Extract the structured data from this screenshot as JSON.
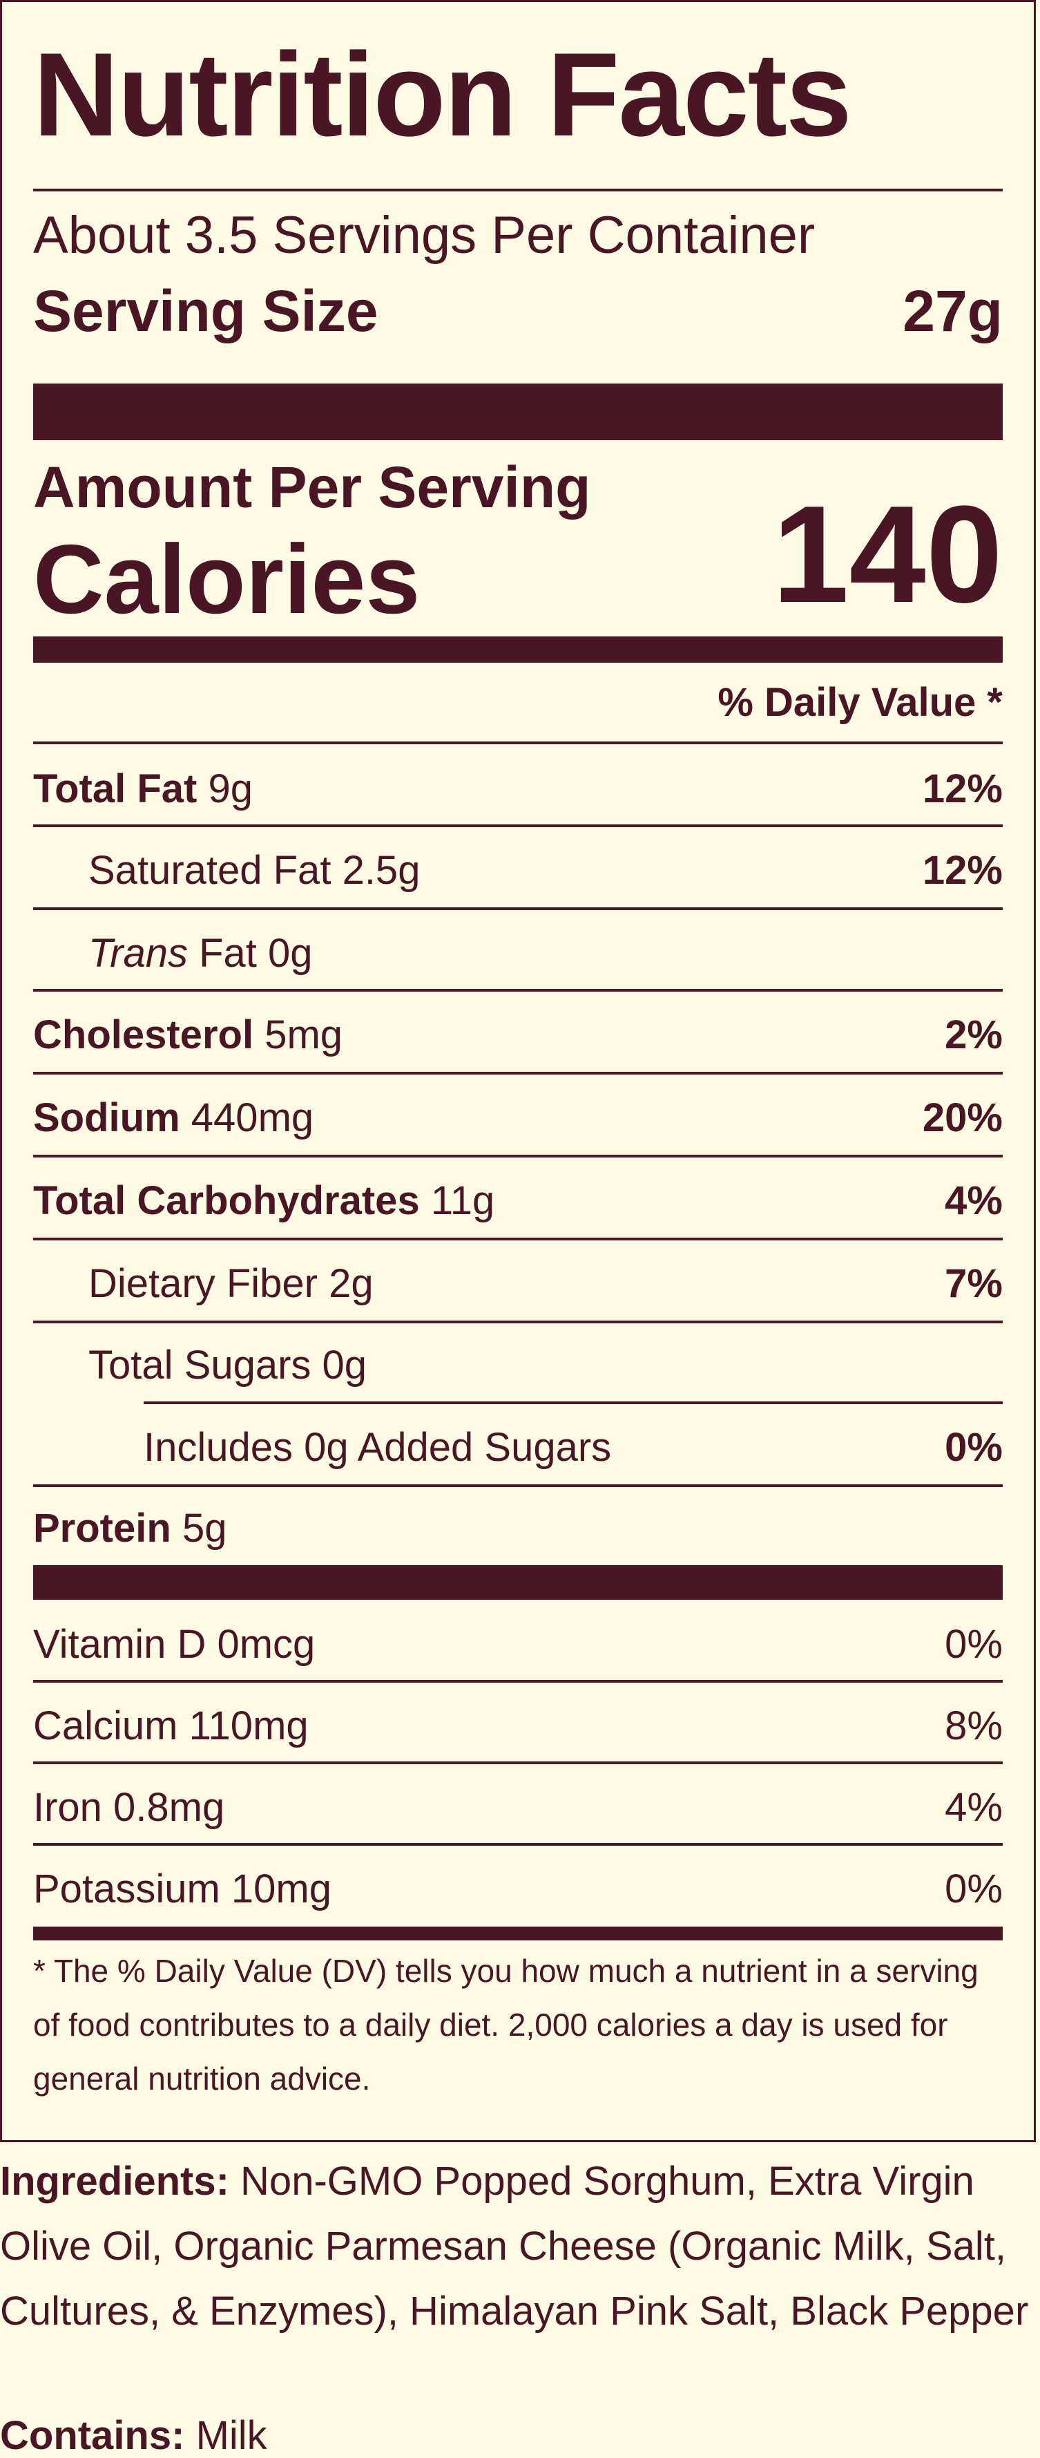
{
  "title": "Nutrition Facts",
  "servings_per_container": "About 3.5 Servings Per Container",
  "serving_size": {
    "label": "Serving Size",
    "value": "27g"
  },
  "amount_per_serving": "Amount Per Serving",
  "calories": {
    "label": "Calories",
    "value": "140"
  },
  "daily_value_header": "% Daily Value *",
  "nutrients": [
    {
      "name": "Total Fat",
      "amount": "9g",
      "dv": "12%"
    },
    {
      "name": "Saturated Fat",
      "amount": "2.5g",
      "dv": "12%"
    },
    {
      "name_italic": "Trans",
      "name": "Fat",
      "amount": "0g"
    },
    {
      "name": "Cholesterol",
      "amount": "5mg",
      "dv": "2%"
    },
    {
      "name": "Sodium",
      "amount": "440mg",
      "dv": "20%"
    },
    {
      "name": "Total Carbohydrates",
      "amount": "11g",
      "dv": "4%"
    },
    {
      "name": "Dietary Fiber",
      "amount": "2g",
      "dv": "7%"
    },
    {
      "name": "Total Sugars",
      "amount": "0g"
    },
    {
      "text": "Includes 0g Added Sugars",
      "dv": "0%"
    },
    {
      "name": "Protein",
      "amount": "5g"
    }
  ],
  "vitamins": [
    {
      "text": "Vitamin D 0mcg",
      "dv": "0%"
    },
    {
      "text": "Calcium 110mg",
      "dv": "8%"
    },
    {
      "text": "Iron 0.8mg",
      "dv": "4%"
    },
    {
      "text": "Potassium 10mg",
      "dv": "0%"
    }
  ],
  "footnote": "* The % Daily Value (DV) tells you how much a nutrient in a serving of food contributes to a daily diet. 2,000 calories a day is used for general nutrition advice.",
  "ingredients": {
    "label": "Ingredients:",
    "text": "Non-GMO Popped Sorghum, Extra Virgin Olive Oil, Organic Parmesan Cheese (Organic Milk, Salt, Cultures, & Enzymes), Himalayan Pink Salt, Black Pepper"
  },
  "contains": {
    "label": "Contains:",
    "text": "Milk"
  },
  "colors": {
    "ink": "#4a1525",
    "background": "#fdfbe4"
  }
}
